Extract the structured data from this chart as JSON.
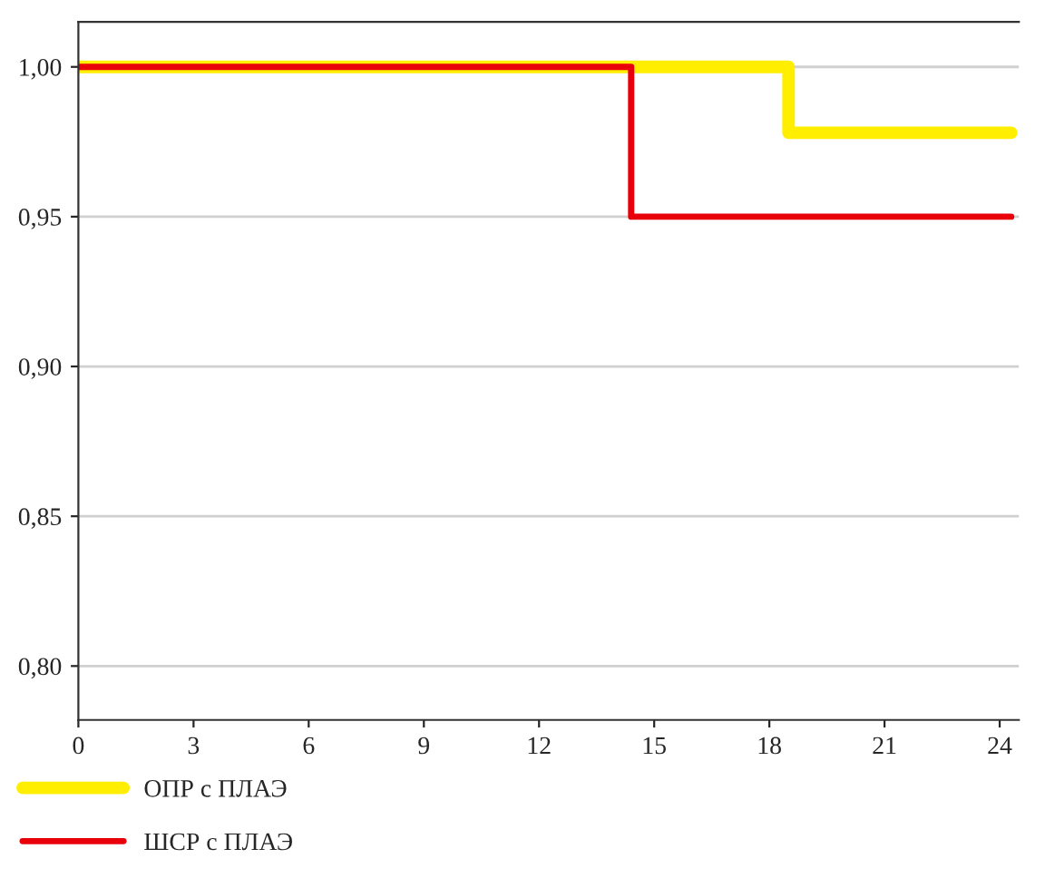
{
  "chart_data": {
    "type": "step",
    "x": [
      0,
      14.4,
      18.5,
      24.3
    ],
    "series": [
      {
        "name": "ОПР с ПЛАЭ",
        "color": "#ffee00",
        "values": [
          1.0,
          1.0,
          0.978,
          0.978
        ]
      },
      {
        "name": "ШСР с ПЛАЭ",
        "color": "#e8000b",
        "values": [
          1.0,
          0.95,
          0.95,
          0.95
        ]
      }
    ],
    "xlim": [
      0,
      24.5
    ],
    "xticks": [
      0,
      3,
      6,
      9,
      12,
      15,
      18,
      21,
      24
    ],
    "ylim": [
      0.782,
      1.015
    ],
    "yticks": [
      {
        "value": 0.8,
        "label": "0,80"
      },
      {
        "value": 0.85,
        "label": "0,85"
      },
      {
        "value": 0.9,
        "label": "0,90"
      },
      {
        "value": 0.95,
        "label": "0,95"
      },
      {
        "value": 1.0,
        "label": "1,00"
      }
    ],
    "grid": "y",
    "legend": "bottom left",
    "line_style": "solid",
    "marker": "none"
  }
}
